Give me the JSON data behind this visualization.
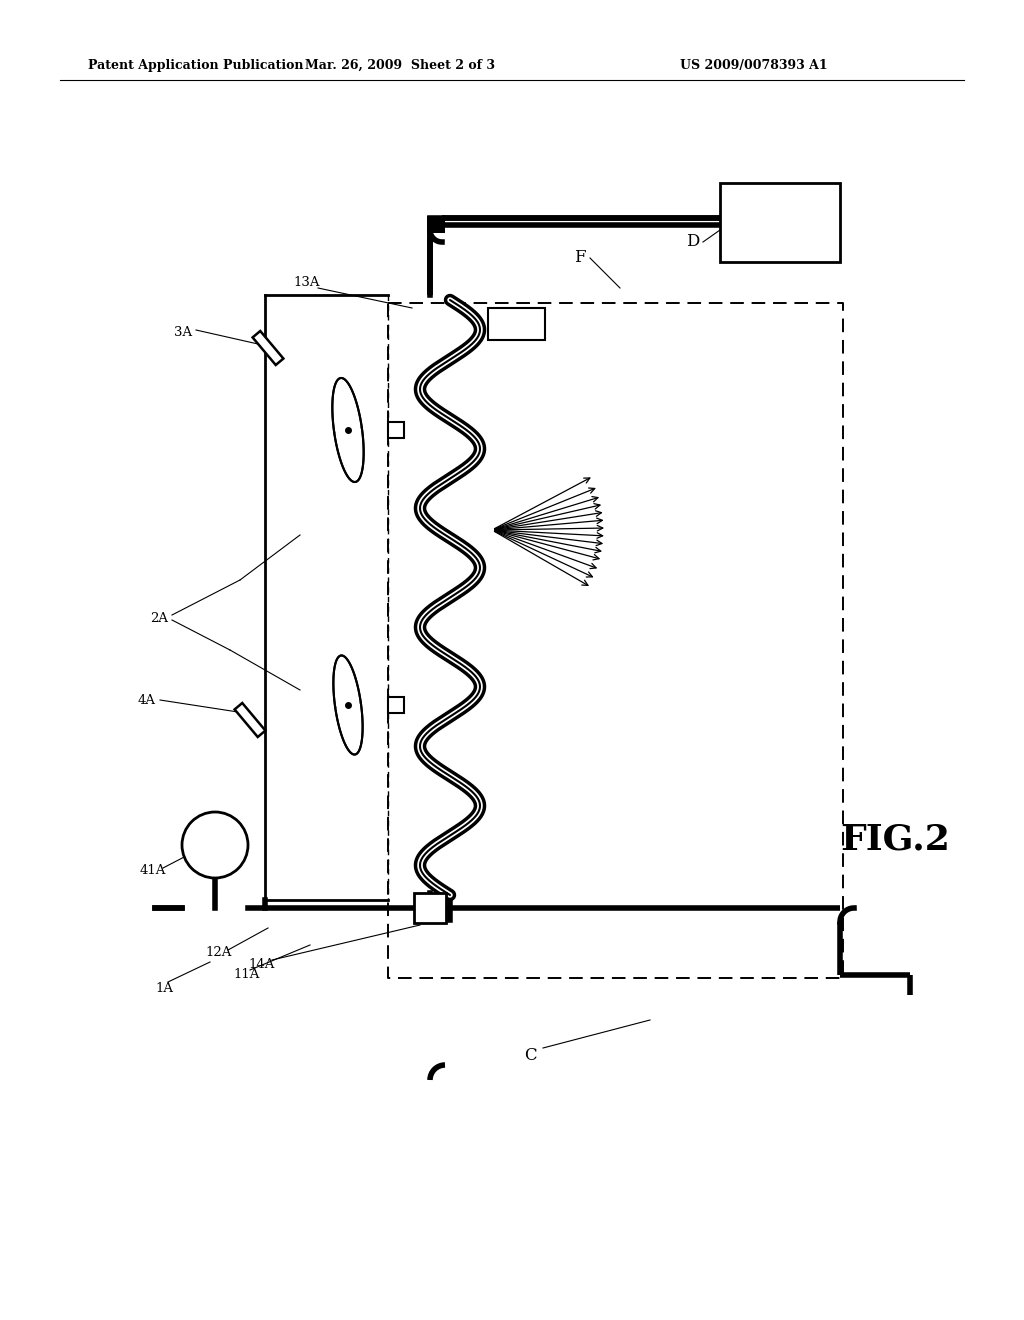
{
  "bg_color": "#ffffff",
  "line_color": "#000000",
  "header_text": "Patent Application Publication",
  "header_date": "Mar. 26, 2009 Sheet 2 of 3",
  "header_patent": "US 2009/0078393 A1"
}
